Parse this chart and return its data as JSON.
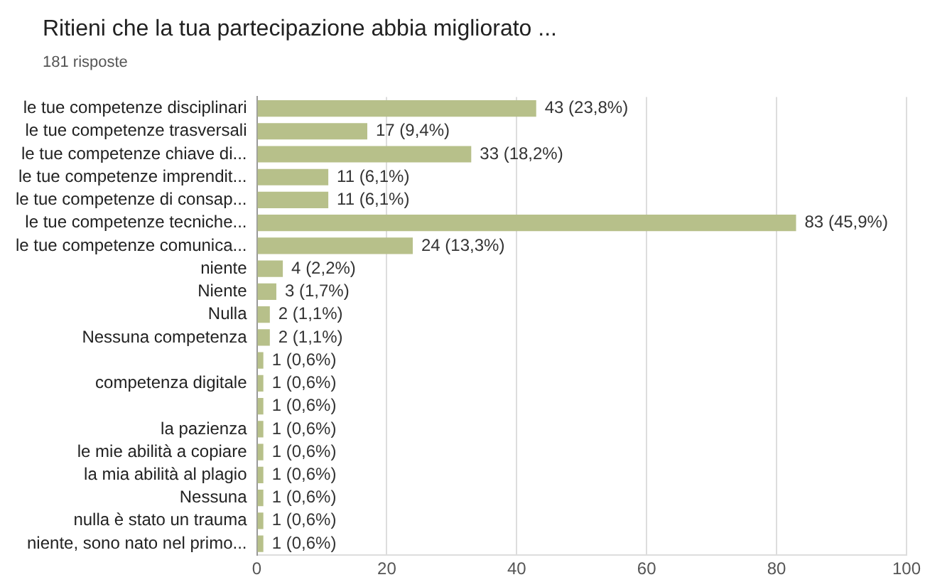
{
  "chart_data": {
    "type": "bar",
    "orientation": "horizontal",
    "title": "Ritieni che la tua partecipazione abbia migliorato ...",
    "subtitle": "181 risposte",
    "categories": [
      "le tue competenze disciplinari",
      "le tue competenze trasversali",
      "le tue competenze chiave di...",
      "le tue competenze imprendit...",
      "le tue competenze di consap...",
      "le tue competenze tecniche...",
      "le tue competenze comunica...",
      "niente",
      "Niente",
      "Nulla",
      "Nessuna competenza",
      null,
      "competenza digitale",
      null,
      "la pazienza",
      "le mie abilità a copiare",
      "la mia abilità al plagio",
      "Nessuna",
      "nulla è stato un trauma",
      "niente, sono nato nel primo..."
    ],
    "values": [
      43,
      17,
      33,
      11,
      11,
      83,
      24,
      4,
      3,
      2,
      2,
      1,
      1,
      1,
      1,
      1,
      1,
      1,
      1,
      1
    ],
    "value_labels": [
      "43 (23,8%)",
      "17 (9,4%)",
      "33 (18,2%)",
      "11 (6,1%)",
      "11 (6,1%)",
      "83 (45,9%)",
      "24 (13,3%)",
      "4 (2,2%)",
      "3 (1,7%)",
      "2 (1,1%)",
      "2 (1,1%)",
      "1 (0,6%)",
      "1 (0,6%)",
      "1 (0,6%)",
      "1 (0,6%)",
      "1 (0,6%)",
      "1 (0,6%)",
      "1 (0,6%)",
      "1 (0,6%)",
      "1 (0,6%)"
    ],
    "color": "#b7c08a",
    "xlim": [
      0,
      100
    ],
    "xticks": [
      0,
      20,
      40,
      60,
      80,
      100
    ],
    "grid": "x"
  }
}
